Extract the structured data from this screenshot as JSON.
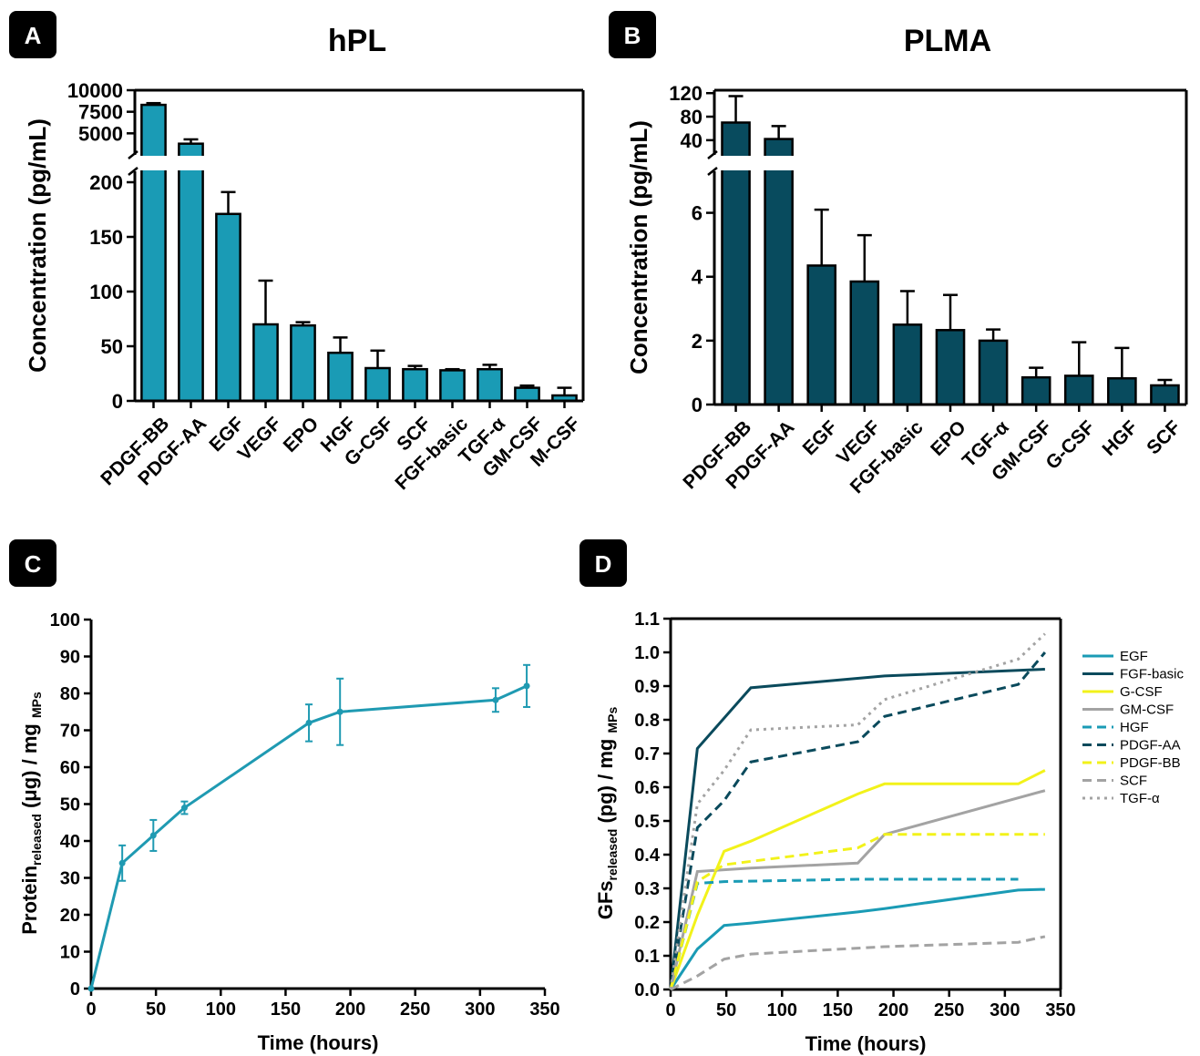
{
  "panels": {
    "A": {
      "badge": "A",
      "title": "hPL"
    },
    "B": {
      "badge": "B",
      "title": "PLMA"
    },
    "C": {
      "badge": "C"
    },
    "D": {
      "badge": "D"
    }
  },
  "colors": {
    "hpl_bar": "#1a9bb5",
    "plma_bar": "#084b5e",
    "line_c": "#1f9ab2",
    "EGF": "#1a9bb5",
    "FGF-basic": "#0a4a5c",
    "G-CSF": "#f2f21a",
    "GM-CSF": "#a3a3a3",
    "HGF": "#1a9bb5",
    "PDGF-AA": "#0a4a5c",
    "PDGF-BB": "#f2f21a",
    "SCF": "#a3a3a3",
    "TGF-α": "#a3a3a3"
  },
  "chart_data": [
    {
      "type": "bar",
      "title": "hPL",
      "ylabel": "Concentration (pg/mL)",
      "categories": [
        "PDGF-BB",
        "PDGF-AA",
        "EGF",
        "VEGF",
        "EPO",
        "HGF",
        "G-CSF",
        "SCF",
        "FGF-basic",
        "TGF-α",
        "GM-CSF",
        "M-CSF"
      ],
      "values": [
        8300,
        3800,
        171,
        70,
        69,
        44,
        30,
        29,
        28,
        29,
        12,
        5
      ],
      "errors": [
        200,
        500,
        20,
        40,
        3,
        14,
        16,
        3,
        1,
        4,
        2,
        7
      ],
      "y_break": {
        "lower": [
          0,
          210
        ],
        "upper": [
          2500,
          10000
        ]
      },
      "yticks_lower": [
        "0",
        "50",
        "100",
        "150",
        "200"
      ],
      "yticks_upper": [
        "5000",
        "7500",
        "10000"
      ]
    },
    {
      "type": "bar",
      "title": "PLMA",
      "ylabel": "Concentration (pg/mL)",
      "categories": [
        "PDGF-BB",
        "PDGF-AA",
        "EGF",
        "VEGF",
        "FGF-basic",
        "EPO",
        "TGF-α",
        "GM-CSF",
        "G-CSF",
        "HGF",
        "SCF"
      ],
      "values": [
        70,
        42,
        4.35,
        3.85,
        2.5,
        2.33,
        2.0,
        0.85,
        0.9,
        0.82,
        0.6
      ],
      "errors": [
        45,
        22,
        1.75,
        1.45,
        1.05,
        1.1,
        0.35,
        0.3,
        1.05,
        0.95,
        0.17
      ],
      "y_break": {
        "lower": [
          0,
          7.3
        ],
        "upper": [
          15,
          125
        ]
      },
      "yticks_lower": [
        "0",
        "2",
        "4",
        "6"
      ],
      "yticks_upper": [
        "40",
        "80",
        "120"
      ]
    },
    {
      "type": "line",
      "xlabel": "Time (hours)",
      "ylabel_main": "Protein",
      "ylabel_sub": "released",
      "ylabel_rest": " (μg) / mg ",
      "ylabel_sub2": "MPs",
      "xlim": [
        0,
        350
      ],
      "ylim": [
        0,
        100
      ],
      "xticks": [
        "0",
        "50",
        "100",
        "150",
        "200",
        "250",
        "300",
        "350"
      ],
      "yticks": [
        "0",
        "10",
        "20",
        "30",
        "40",
        "50",
        "60",
        "70",
        "80",
        "90",
        "100"
      ],
      "series": [
        {
          "x": [
            0,
            24,
            48,
            72,
            168,
            192,
            312,
            336
          ],
          "y": [
            0,
            34,
            41.5,
            49,
            72,
            75,
            78.2,
            82
          ],
          "err": [
            0,
            4.8,
            4.2,
            1.7,
            5,
            9,
            3.2,
            5.7
          ]
        }
      ]
    },
    {
      "type": "line",
      "xlabel": "Time (hours)",
      "ylabel_main": "GFs",
      "ylabel_sub": "released",
      "ylabel_rest": " (pg) / mg ",
      "ylabel_sub2": "MPs",
      "xlim": [
        0,
        350
      ],
      "ylim": [
        0,
        1.1
      ],
      "xticks": [
        "0",
        "50",
        "100",
        "150",
        "200",
        "250",
        "300",
        "350"
      ],
      "yticks": [
        "0.0",
        "0.1",
        "0.2",
        "0.3",
        "0.4",
        "0.5",
        "0.6",
        "0.7",
        "0.8",
        "0.9",
        "1.0",
        "1.1"
      ],
      "legend": "right",
      "series": [
        {
          "name": "EGF",
          "style": "solid",
          "x": [
            0,
            24,
            48,
            72,
            168,
            192,
            312,
            336
          ],
          "y": [
            0,
            0.12,
            0.19,
            0.197,
            0.23,
            0.24,
            0.295,
            0.297
          ]
        },
        {
          "name": "FGF-basic",
          "style": "solid",
          "x": [
            0,
            24,
            72,
            192,
            336
          ],
          "y": [
            0,
            0.715,
            0.895,
            0.93,
            0.95
          ]
        },
        {
          "name": "G-CSF",
          "style": "solid",
          "x": [
            0,
            24,
            48,
            72,
            168,
            192,
            312,
            336
          ],
          "y": [
            0,
            0.22,
            0.41,
            0.44,
            0.58,
            0.61,
            0.61,
            0.65
          ]
        },
        {
          "name": "GM-CSF",
          "style": "solid",
          "x": [
            0,
            24,
            48,
            72,
            168,
            192,
            336
          ],
          "y": [
            0,
            0.35,
            0.355,
            0.36,
            0.375,
            0.46,
            0.59
          ]
        },
        {
          "name": "HGF",
          "style": "dashed",
          "x": [
            0,
            24,
            48,
            168,
            192,
            312
          ],
          "y": [
            0,
            0.315,
            0.32,
            0.327,
            0.327,
            0.327
          ]
        },
        {
          "name": "PDGF-AA",
          "style": "dashed",
          "x": [
            0,
            24,
            48,
            72,
            168,
            192,
            312,
            336
          ],
          "y": [
            0,
            0.48,
            0.56,
            0.675,
            0.735,
            0.81,
            0.905,
            1.0
          ]
        },
        {
          "name": "PDGF-BB",
          "style": "dashed",
          "x": [
            0,
            24,
            48,
            168,
            192,
            312,
            336
          ],
          "y": [
            0,
            0.32,
            0.37,
            0.42,
            0.46,
            0.46,
            0.46
          ]
        },
        {
          "name": "SCF",
          "style": "dashed",
          "x": [
            0,
            24,
            48,
            72,
            192,
            312,
            336
          ],
          "y": [
            0,
            0.04,
            0.09,
            0.105,
            0.127,
            0.14,
            0.157
          ]
        },
        {
          "name": "TGF-α",
          "style": "dotted",
          "x": [
            0,
            24,
            48,
            72,
            168,
            192,
            312,
            336
          ],
          "y": [
            0,
            0.55,
            0.65,
            0.77,
            0.785,
            0.86,
            0.98,
            1.055
          ]
        }
      ]
    }
  ]
}
